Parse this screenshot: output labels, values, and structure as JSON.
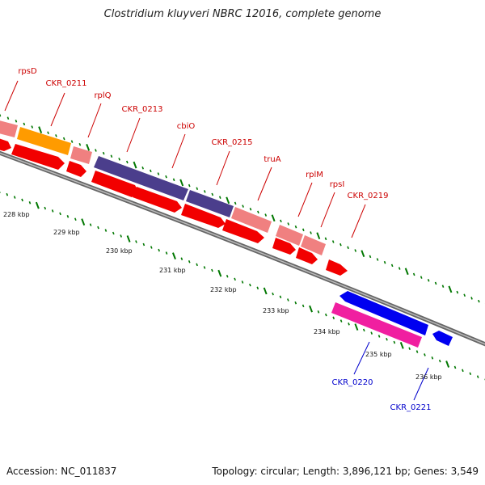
{
  "title": "Clostridium kluyveri NBRC 12016, complete genome",
  "footer": {
    "accession": "Accession: NC_011837",
    "stats": "Topology: circular; Length: 3,896,121 bp; Genes: 3,549"
  },
  "colors": {
    "forward_gene": "#f20000",
    "forward_rna_light": "#f08080",
    "cds_orange": "#ff9b00",
    "cds_purple": "#4b3e8c",
    "reverse_gene": "#0000f0",
    "reverse_rna": "#f01fa0",
    "forward_label": "#cc0000",
    "reverse_label": "#0000cc",
    "tick": "#007700",
    "backbone": "#888888"
  },
  "kbp_labels": [
    "228 kbp",
    "229 kbp",
    "230 kbp",
    "231 kbp",
    "232 kbp",
    "233 kbp",
    "234 kbp",
    "235 kbp",
    "236 kbp"
  ],
  "gene_labels": [
    {
      "name": "rpsD",
      "strand": "forward"
    },
    {
      "name": "CKR_0211",
      "strand": "forward"
    },
    {
      "name": "rplQ",
      "strand": "forward"
    },
    {
      "name": "CKR_0213",
      "strand": "forward"
    },
    {
      "name": "cbiO",
      "strand": "forward"
    },
    {
      "name": "CKR_0215",
      "strand": "forward"
    },
    {
      "name": "truA",
      "strand": "forward"
    },
    {
      "name": "rplM",
      "strand": "forward"
    },
    {
      "name": "rpsI",
      "strand": "forward"
    },
    {
      "name": "CKR_0219",
      "strand": "forward"
    },
    {
      "name": "CKR_0220",
      "strand": "reverse"
    },
    {
      "name": "CKR_0221",
      "strand": "reverse"
    }
  ]
}
